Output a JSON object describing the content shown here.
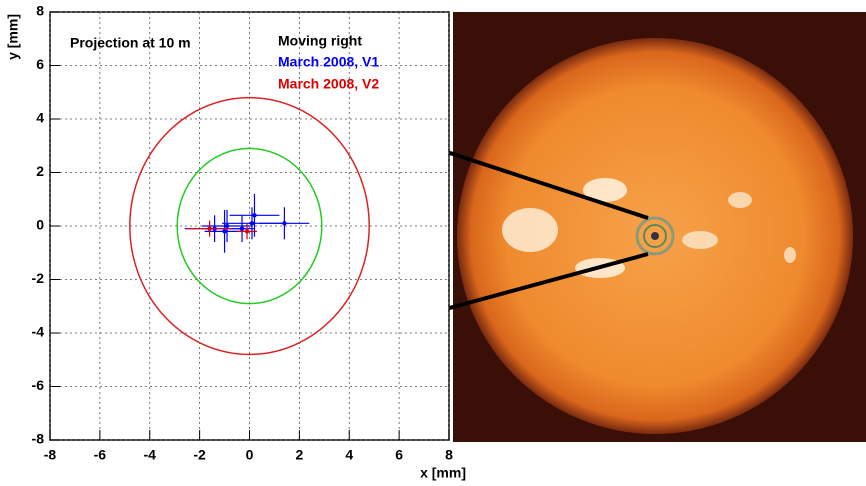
{
  "chart_data": {
    "type": "scatter",
    "title": "Projection at 10 m",
    "subtitle": "Moving right",
    "x_label": "x [mm]",
    "y_label": "y [mm]",
    "xlim": [
      -8,
      8
    ],
    "ylim": [
      -8,
      8
    ],
    "xticks": [
      -8,
      -6,
      -4,
      -2,
      0,
      2,
      4,
      6,
      8
    ],
    "yticks": [
      -8,
      -6,
      -4,
      -2,
      0,
      2,
      4,
      6,
      8
    ],
    "grid": true,
    "circles": [
      {
        "radius": 2.9,
        "color": "#22cc22"
      },
      {
        "radius": 4.8,
        "color": "#dd2222"
      }
    ],
    "series": [
      {
        "name": "March 2008, V1",
        "color": "#0000ff",
        "x": [
          -1.4,
          -1.0,
          -0.9,
          -0.3,
          0.1,
          0.2,
          1.4
        ],
        "values": [
          -0.1,
          -0.2,
          0.0,
          -0.1,
          0.1,
          0.4,
          0.1
        ],
        "xerr": [
          1.2,
          0.8,
          1.0,
          0.5,
          1.2,
          1.0,
          1.0
        ],
        "yerr": [
          0.5,
          0.8,
          0.6,
          0.5,
          0.6,
          0.8,
          0.6
        ]
      },
      {
        "name": "March 2008, V2",
        "color": "#dd0000",
        "x": [
          -1.6,
          -0.1
        ],
        "values": [
          -0.1,
          -0.2
        ],
        "xerr": [
          0.9,
          0.4
        ],
        "yerr": [
          0.3,
          0.3
        ]
      }
    ]
  }
}
